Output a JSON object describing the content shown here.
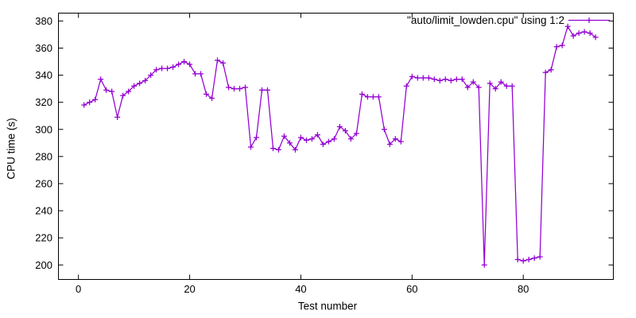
{
  "chart_data": {
    "type": "line",
    "title": "",
    "xlabel": "Test number",
    "ylabel": "CPU time (s)",
    "legend_label": "\"auto/limit_lowden.cpu\" using 1:2",
    "legend_position": "top-right-inside",
    "grid": false,
    "marker": "plus",
    "line_color": "#9400D3",
    "border_color": "#000000",
    "background_color": "#ffffff",
    "xlim": [
      -3.6,
      96.2
    ],
    "ylim": [
      189.3,
      385.8
    ],
    "xticks": [
      0,
      20,
      40,
      60,
      80
    ],
    "yticks": [
      200,
      220,
      240,
      260,
      280,
      300,
      320,
      340,
      360,
      380
    ],
    "series": [
      {
        "name": "\"auto/limit_lowden.cpu\" using 1:2",
        "color": "#9400D3",
        "x": [
          1,
          2,
          3,
          4,
          5,
          6,
          7,
          8,
          9,
          10,
          11,
          12,
          13,
          14,
          15,
          16,
          17,
          18,
          19,
          20,
          21,
          22,
          23,
          24,
          25,
          26,
          27,
          28,
          29,
          30,
          31,
          32,
          33,
          34,
          35,
          36,
          37,
          38,
          39,
          40,
          41,
          42,
          43,
          44,
          45,
          46,
          47,
          48,
          49,
          50,
          51,
          52,
          53,
          54,
          55,
          56,
          57,
          58,
          59,
          60,
          61,
          62,
          63,
          64,
          65,
          66,
          67,
          68,
          69,
          70,
          71,
          72,
          73,
          74,
          75,
          76,
          77,
          78,
          79,
          80,
          81,
          82,
          83,
          84,
          85,
          86,
          87,
          88,
          89,
          90,
          91,
          92,
          93
        ],
        "y": [
          318,
          320,
          322,
          337,
          329,
          328,
          309,
          325,
          328,
          332,
          334,
          336,
          340,
          344,
          345,
          345,
          346,
          348,
          350,
          348,
          341,
          341,
          326,
          323,
          351,
          349,
          331,
          330,
          330,
          331,
          287,
          294,
          329,
          329,
          286,
          285,
          295,
          290,
          285,
          294,
          292,
          293,
          296,
          289,
          291,
          293,
          302,
          299,
          293,
          297,
          326,
          324,
          324,
          324,
          300,
          289,
          293,
          291,
          332,
          339,
          338,
          338,
          338,
          337,
          336,
          337,
          336,
          337,
          337,
          331,
          335,
          331,
          200,
          334,
          330,
          335,
          332,
          332,
          204,
          203,
          204,
          205,
          206,
          342,
          344,
          361,
          362,
          376,
          369,
          371,
          372,
          371,
          368
        ]
      }
    ]
  }
}
